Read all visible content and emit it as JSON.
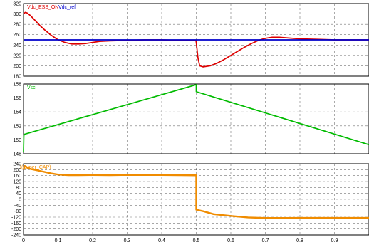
{
  "chart_data": [
    {
      "type": "line",
      "legend": [
        "Vdc_ESS_ON",
        "Vdc_ref"
      ],
      "xlim": [
        0,
        1.0
      ],
      "xticks": [
        "0",
        "0.1",
        "0.2",
        "0.3",
        "0.4",
        "0.5",
        "0.6",
        "0.7",
        "0.8",
        "0.9"
      ],
      "ylim": [
        180,
        320
      ],
      "yticks": [
        "180",
        "200",
        "220",
        "240",
        "260",
        "280",
        "300",
        "320"
      ],
      "grid": true,
      "series": [
        {
          "name": "Vdc_ESS_ON",
          "color": "#dd0000",
          "x": [
            0,
            0.005,
            0.01,
            0.02,
            0.03,
            0.04,
            0.05,
            0.06,
            0.08,
            0.1,
            0.12,
            0.14,
            0.16,
            0.18,
            0.2,
            0.22,
            0.25,
            0.3,
            0.35,
            0.4,
            0.45,
            0.499,
            0.5,
            0.505,
            0.51,
            0.52,
            0.54,
            0.56,
            0.58,
            0.6,
            0.62,
            0.64,
            0.66,
            0.68,
            0.7,
            0.72,
            0.74,
            0.76,
            0.8,
            0.85,
            0.9,
            0.95,
            1.0
          ],
          "y": [
            300,
            303,
            302,
            297,
            290,
            283,
            276,
            270,
            259,
            250,
            245,
            242,
            242,
            243,
            245,
            247,
            248,
            249,
            250,
            250,
            249,
            249,
            245,
            215,
            200,
            198,
            200,
            205,
            212,
            220,
            228,
            236,
            243,
            249,
            253,
            255,
            255,
            254,
            252,
            251,
            250,
            250,
            250
          ]
        },
        {
          "name": "Vdc_ref",
          "color": "#0000cc",
          "x": [
            0,
            1.0
          ],
          "y": [
            250,
            250
          ]
        }
      ]
    },
    {
      "type": "line",
      "legend": [
        "Vsc"
      ],
      "xlim": [
        0,
        1.0
      ],
      "xticks": [
        "0",
        "0.1",
        "0.2",
        "0.3",
        "0.4",
        "0.5",
        "0.6",
        "0.7",
        "0.8",
        "0.9"
      ],
      "ylim": [
        148,
        158
      ],
      "yticks": [
        "148",
        "150",
        "152",
        "154",
        "156",
        "158"
      ],
      "grid": true,
      "series": [
        {
          "name": "Vsc",
          "color": "#00bb00",
          "x": [
            0,
            0.001,
            0.003,
            0.5,
            0.5,
            1.0
          ],
          "y": [
            148.2,
            150.6,
            150.8,
            157.9,
            156.9,
            149.3
          ]
        }
      ]
    },
    {
      "type": "line",
      "legend": [
        "I(Super_CAP)"
      ],
      "xlim": [
        0,
        1.0
      ],
      "xticks": [
        "0",
        "0.1",
        "0.2",
        "0.3",
        "0.4",
        "0.5",
        "0.6",
        "0.7",
        "0.8",
        "0.9"
      ],
      "ylim": [
        -240,
        240
      ],
      "yticks": [
        "-240",
        "-200",
        "-160",
        "-120",
        "-80",
        "-40",
        "0",
        "40",
        "80",
        "120",
        "160",
        "200",
        "240"
      ],
      "grid": true,
      "series": [
        {
          "name": "I(Super_CAP)",
          "color": "#f08c00",
          "x": [
            0,
            0.003,
            0.01,
            0.02,
            0.04,
            0.06,
            0.08,
            0.1,
            0.13,
            0.16,
            0.2,
            0.25,
            0.3,
            0.35,
            0.4,
            0.45,
            0.5,
            0.5,
            0.52,
            0.55,
            0.6,
            0.65,
            0.7,
            0.75,
            0.8,
            0.9,
            1.0
          ],
          "y": [
            200,
            225,
            215,
            205,
            195,
            185,
            175,
            167,
            163,
            163,
            164,
            163,
            165,
            164,
            164,
            163,
            162,
            -70,
            -80,
            -100,
            -112,
            -122,
            -126,
            -126,
            -125,
            -125,
            -125
          ]
        }
      ]
    }
  ]
}
